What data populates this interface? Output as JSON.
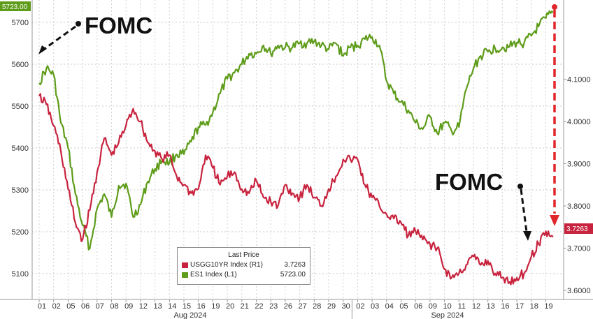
{
  "chart_data": {
    "type": "line",
    "colors": {
      "es1": "#5e9c1a",
      "usgg": "#c8233e",
      "arrow_red": "#e0262b",
      "annotation": "#111111"
    },
    "legend": {
      "title": "Last Price",
      "items": [
        {
          "name": "USGG10YR Index  (R1)",
          "value": "3.7263"
        },
        {
          "name": "ES1 Index  (L1)",
          "value": "5723.00"
        }
      ],
      "placement": "bottom-center"
    },
    "annotations": [
      "FOMC",
      "FOMC"
    ],
    "left_axis": {
      "ticks": [
        "5100",
        "5200",
        "5300",
        "5400",
        "5500",
        "5600",
        "5700"
      ],
      "range": [
        5050,
        5790
      ]
    },
    "right_axis": {
      "ticks": [
        "3.6000",
        "3.7000",
        "3.8000",
        "3.9000",
        "4.0000",
        "4.1000"
      ],
      "range": [
        3.58,
        4.215
      ]
    },
    "last_values": {
      "left": "5723.00",
      "right": "3.7263"
    },
    "x_ticks": [
      "01",
      "02",
      "05",
      "06",
      "07",
      "08",
      "09",
      "12",
      "13",
      "14",
      "15",
      "16",
      "19",
      "20",
      "21",
      "22",
      "23",
      "26",
      "27",
      "28",
      "29",
      "30",
      "02",
      "03",
      "04",
      "05",
      "06",
      "09",
      "10",
      "11",
      "12",
      "13",
      "16",
      "17",
      "18",
      "19"
    ],
    "months": [
      "Aug 2024",
      "Sep 2024"
    ],
    "grid": true,
    "series": [
      {
        "name": "ES1 Index  (L1)",
        "axis": "left",
        "x": [
          0,
          0.5,
          1,
          1.5,
          2,
          2.5,
          3,
          3.5,
          4,
          4.5,
          5,
          5.5,
          6,
          6.5,
          7,
          7.5,
          8,
          8.5,
          9,
          9.5,
          10,
          10.5,
          11,
          11.5,
          12,
          12.5,
          13,
          13.5,
          14,
          14.5,
          15,
          15.5,
          16,
          16.5,
          17,
          17.5,
          18,
          18.5,
          19,
          19.5,
          20,
          20.5,
          21,
          21.5,
          22,
          22.5,
          23,
          23.5,
          24,
          24.5,
          25,
          25.5,
          26,
          26.5,
          27,
          27.5,
          28,
          28.5,
          29,
          29.5,
          30,
          30.5,
          31,
          31.5,
          32,
          32.5,
          33,
          33.5,
          34,
          34.5,
          35,
          35.5
        ],
        "values": [
          5555,
          5590,
          5575,
          5460,
          5400,
          5290,
          5215,
          5160,
          5255,
          5290,
          5235,
          5310,
          5315,
          5235,
          5265,
          5320,
          5350,
          5370,
          5365,
          5385,
          5385,
          5415,
          5450,
          5455,
          5485,
          5530,
          5565,
          5580,
          5600,
          5625,
          5625,
          5645,
          5625,
          5645,
          5640,
          5640,
          5650,
          5650,
          5655,
          5645,
          5635,
          5650,
          5620,
          5640,
          5645,
          5660,
          5665,
          5645,
          5560,
          5530,
          5510,
          5490,
          5460,
          5445,
          5475,
          5435,
          5460,
          5440,
          5450,
          5540,
          5590,
          5620,
          5630,
          5638,
          5640,
          5642,
          5652,
          5650,
          5668,
          5690,
          5710,
          5723
        ]
      },
      {
        "name": "USGG10YR Index  (R1)",
        "axis": "right",
        "x": [
          0,
          0.5,
          1,
          1.5,
          2,
          2.5,
          3,
          3.5,
          4,
          4.5,
          5,
          5.5,
          6,
          6.5,
          7,
          7.5,
          8,
          8.5,
          9,
          9.5,
          10,
          10.5,
          11,
          11.5,
          12,
          12.5,
          13,
          13.5,
          14,
          14.5,
          15,
          15.5,
          16,
          16.5,
          17,
          17.5,
          18,
          18.5,
          19,
          19.5,
          20,
          20.5,
          21,
          21.5,
          22,
          22.5,
          23,
          23.5,
          24,
          24.5,
          25,
          25.5,
          26,
          26.5,
          27,
          27.5,
          28,
          28.5,
          29,
          29.5,
          30,
          30.5,
          31,
          31.5,
          32,
          32.5,
          33,
          33.5,
          34,
          34.5,
          35,
          35.5
        ],
        "values": [
          4.06,
          4.04,
          3.99,
          3.93,
          3.84,
          3.76,
          3.72,
          3.79,
          3.88,
          3.96,
          3.92,
          3.95,
          3.99,
          4.03,
          4.0,
          3.95,
          3.93,
          3.91,
          3.92,
          3.87,
          3.85,
          3.83,
          3.84,
          3.92,
          3.89,
          3.85,
          3.87,
          3.88,
          3.84,
          3.83,
          3.86,
          3.82,
          3.81,
          3.8,
          3.85,
          3.83,
          3.82,
          3.85,
          3.82,
          3.8,
          3.84,
          3.87,
          3.91,
          3.91,
          3.91,
          3.85,
          3.82,
          3.8,
          3.78,
          3.77,
          3.76,
          3.73,
          3.74,
          3.72,
          3.71,
          3.7,
          3.65,
          3.63,
          3.64,
          3.66,
          3.68,
          3.66,
          3.67,
          3.64,
          3.63,
          3.62,
          3.63,
          3.64,
          3.68,
          3.71,
          3.74,
          3.7263
        ]
      }
    ]
  }
}
